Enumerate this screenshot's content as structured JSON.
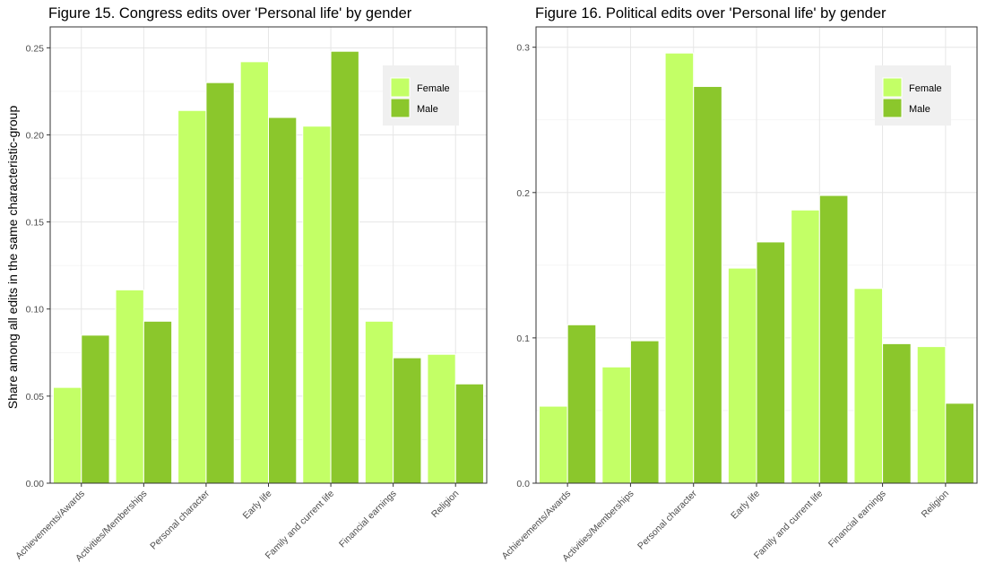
{
  "chart_data": [
    {
      "type": "bar",
      "title": "Figure 15. Congress edits over 'Personal life' by gender",
      "xlabel": "",
      "ylabel": "Share among all edits in the same characteristic-group",
      "categories": [
        "Achievements/Awards",
        "Activities/Memberships",
        "Personal character",
        "Early life",
        "Family and current life",
        "Financial earnings",
        "Religion"
      ],
      "series": [
        {
          "name": "Female",
          "values": [
            0.055,
            0.111,
            0.214,
            0.242,
            0.205,
            0.093,
            0.074
          ],
          "color": "#c3ff66"
        },
        {
          "name": "Male",
          "values": [
            0.085,
            0.093,
            0.23,
            0.21,
            0.248,
            0.072,
            0.057
          ],
          "color": "#8bc72c"
        }
      ],
      "ylim": [
        0,
        0.262
      ],
      "yticks": [
        0,
        0.05,
        0.1,
        0.15,
        0.2,
        0.25
      ],
      "ytick_labels": [
        "0.00",
        "0.05",
        "0.10",
        "0.15",
        "0.20",
        "0.25"
      ],
      "grid": true,
      "legend_position": "top-right"
    },
    {
      "type": "bar",
      "title": "Figure 16. Political edits over 'Personal life' by gender",
      "xlabel": "",
      "ylabel": "",
      "categories": [
        "Achievements/Awards",
        "Activities/Memberships",
        "Personal character",
        "Early life",
        "Family and current life",
        "Financial earnings",
        "Religion"
      ],
      "series": [
        {
          "name": "Female",
          "values": [
            0.053,
            0.08,
            0.296,
            0.148,
            0.188,
            0.134,
            0.094
          ],
          "color": "#c3ff66"
        },
        {
          "name": "Male",
          "values": [
            0.109,
            0.098,
            0.273,
            0.166,
            0.198,
            0.096,
            0.055
          ],
          "color": "#8bc72c"
        }
      ],
      "ylim": [
        0,
        0.314
      ],
      "yticks": [
        0,
        0.1,
        0.2,
        0.3
      ],
      "ytick_labels": [
        "0.0",
        "0.1",
        "0.2",
        "0.3"
      ],
      "grid": true,
      "legend_position": "top-right"
    }
  ]
}
